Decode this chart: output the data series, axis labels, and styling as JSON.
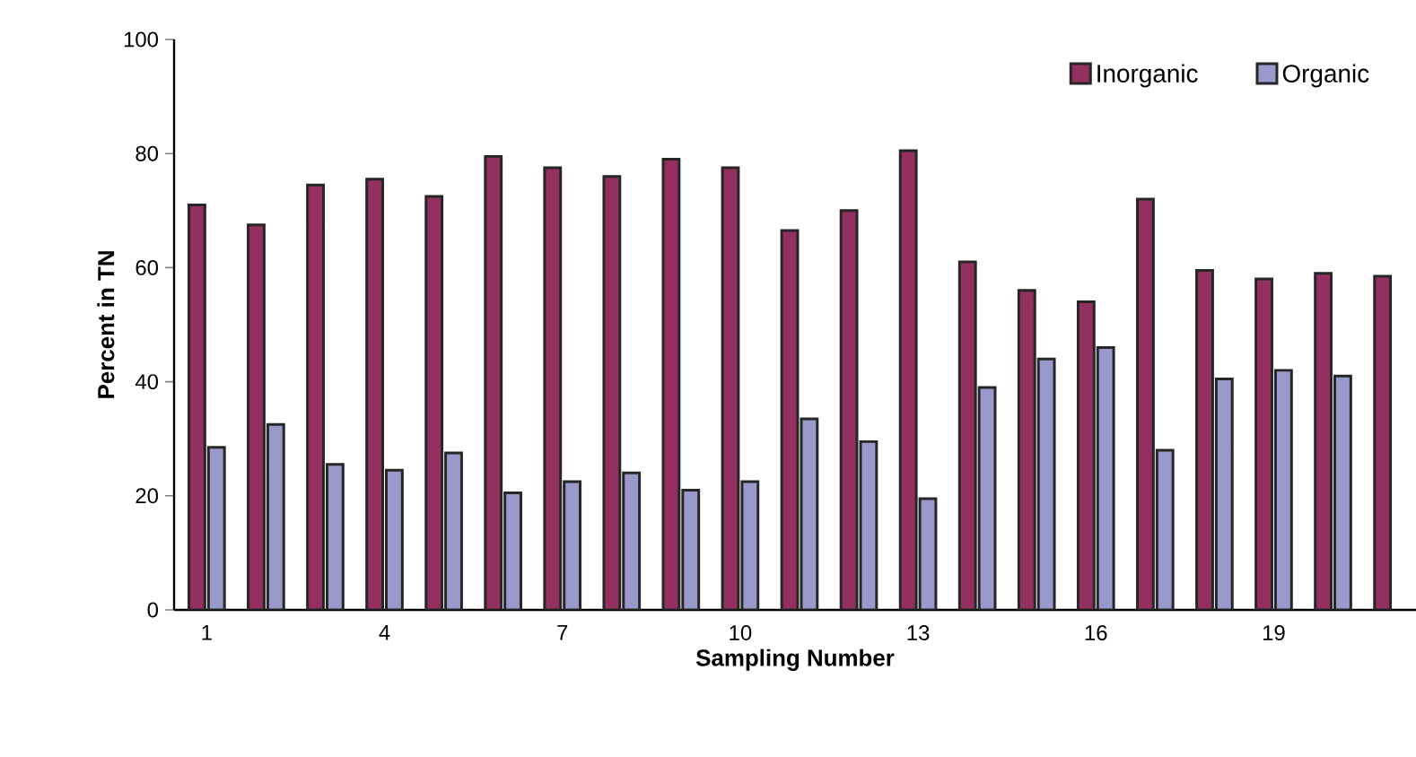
{
  "chart_data": {
    "type": "bar",
    "xlabel": "Sampling Number",
    "ylabel": "Percent in TN",
    "categories": [
      "1",
      null,
      null,
      "4",
      null,
      null,
      "7",
      null,
      null,
      "10",
      null,
      null,
      "13",
      null,
      null,
      "16",
      null,
      null,
      "19",
      null,
      null
    ],
    "series": [
      {
        "name": "Inorganic",
        "color": "#93305f",
        "values": [
          71,
          67.5,
          74.5,
          75.5,
          72.5,
          79.5,
          77.5,
          76,
          79,
          77.5,
          66.5,
          70,
          80.5,
          61,
          56,
          54,
          72,
          59.5,
          58,
          59,
          58.5
        ]
      },
      {
        "name": "Organic",
        "color": "#9999cc",
        "values": [
          28.5,
          32.5,
          25.5,
          24.5,
          27.5,
          20.5,
          22.5,
          24,
          21,
          22.5,
          33.5,
          29.5,
          19.5,
          39,
          44,
          46,
          28,
          40.5,
          42,
          41,
          null
        ]
      }
    ],
    "ylim": [
      0,
      100
    ],
    "yticks": [
      0,
      20,
      40,
      60,
      80,
      100
    ],
    "grid": false,
    "legend": "top right"
  }
}
